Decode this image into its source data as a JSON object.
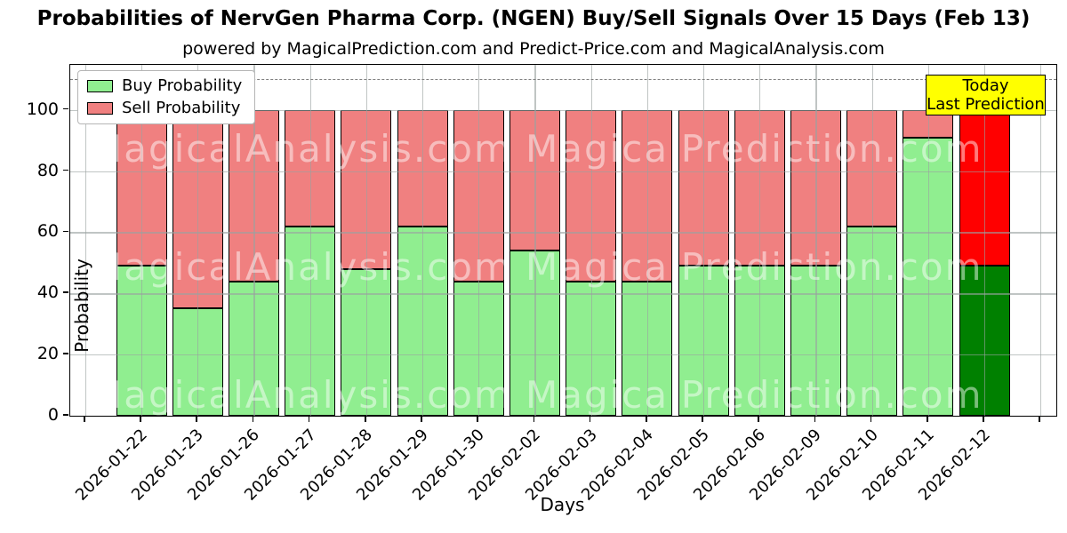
{
  "chart_data": {
    "type": "bar",
    "stacked": true,
    "title": "Probabilities of NervGen Pharma Corp. (NGEN) Buy/Sell Signals Over 15 Days (Feb 13)",
    "subtitle": "powered by MagicalPrediction.com and Predict-Price.com and MagicalAnalysis.com",
    "xlabel": "Days",
    "ylabel": "Probability",
    "categories": [
      "2026-01-22",
      "2026-01-23",
      "2026-01-26",
      "2026-01-27",
      "2026-01-28",
      "2026-01-29",
      "2026-01-30",
      "2026-02-02",
      "2026-02-03",
      "2026-02-04",
      "2026-02-05",
      "2026-02-06",
      "2026-02-09",
      "2026-02-10",
      "2026-02-11",
      "2026-02-12"
    ],
    "series": [
      {
        "name": "Buy Probability",
        "color": "#90EE90",
        "values": [
          49,
          35,
          44,
          62,
          48,
          62,
          44,
          54,
          44,
          44,
          49,
          49,
          49,
          62,
          91,
          49
        ]
      },
      {
        "name": "Sell Probability",
        "color": "#F08080",
        "values": [
          51,
          65,
          56,
          38,
          52,
          38,
          56,
          46,
          56,
          56,
          51,
          51,
          51,
          38,
          9,
          51
        ]
      }
    ],
    "today_bar": {
      "category": "2026-02-12",
      "index": 15,
      "buy_color": "#008000",
      "sell_color": "#FF0000"
    },
    "today_box": {
      "line1": "Today",
      "line2": "Last Prediction",
      "bg": "#FFFF00"
    },
    "yticks": [
      0,
      20,
      40,
      60,
      80,
      100
    ],
    "ylim": [
      0,
      114.7
    ],
    "dashed_line_y": 110,
    "grid": true,
    "legend_position": "upper left",
    "watermarks": {
      "left": "MagicalAnalysis.com",
      "right": "MagicalPrediction.com",
      "rows": 3
    }
  }
}
